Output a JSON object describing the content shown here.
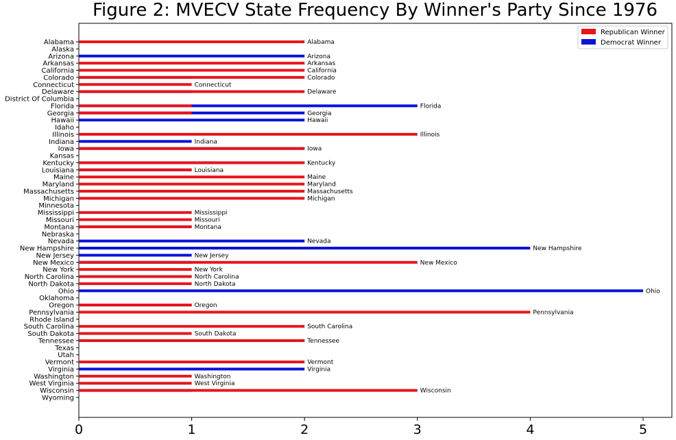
{
  "chart_data": {
    "type": "bar",
    "orientation": "horizontal",
    "title": "Figure 2: MVECV State Frequency By Winner's Party Since 1976",
    "xlabel": "",
    "ylabel": "",
    "xlim": [
      0,
      5.25
    ],
    "xticks": [
      0,
      1,
      2,
      3,
      4,
      5
    ],
    "legend": {
      "placement": "top-right",
      "entries": [
        "Republican Winner",
        "Democrat Winner"
      ]
    },
    "colors": {
      "republican": "#e8151a",
      "democrat": "#0a13d6"
    },
    "categories": [
      "Alabama",
      "Alaska",
      "Arizona",
      "Arkansas",
      "California",
      "Colorado",
      "Connecticut",
      "Delaware",
      "District Of Columbia",
      "Florida",
      "Georgia",
      "Hawaii",
      "Idaho",
      "Illinois",
      "Indiana",
      "Iowa",
      "Kansas",
      "Kentucky",
      "Louisiana",
      "Maine",
      "Maryland",
      "Massachusetts",
      "Michigan",
      "Minnesota",
      "Mississippi",
      "Missouri",
      "Montana",
      "Nebraska",
      "Nevada",
      "New Hampshire",
      "New Jersey",
      "New Mexico",
      "New York",
      "North Carolina",
      "North Dakota",
      "Ohio",
      "Oklahoma",
      "Oregon",
      "Pennsylvania",
      "Rhode Island",
      "South Carolina",
      "South Dakota",
      "Tennessee",
      "Texas",
      "Utah",
      "Vermont",
      "Virginia",
      "Washington",
      "West Virginia",
      "Wisconsin",
      "Wyoming"
    ],
    "series": [
      {
        "name": "Republican Winner",
        "values": [
          2,
          0,
          0,
          2,
          2,
          2,
          1,
          2,
          0,
          1,
          1,
          0,
          0,
          3,
          0,
          2,
          0,
          2,
          1,
          2,
          2,
          2,
          2,
          0,
          1,
          1,
          1,
          0,
          0,
          0,
          0,
          3,
          1,
          1,
          1,
          0,
          0,
          1,
          4,
          0,
          2,
          1,
          2,
          0,
          0,
          2,
          0,
          1,
          1,
          3,
          0
        ]
      },
      {
        "name": "Democrat Winner",
        "values": [
          0,
          0,
          2,
          0,
          0,
          1,
          0,
          1,
          0,
          3,
          2,
          2,
          0,
          0,
          1,
          2,
          0,
          2,
          1,
          0,
          0,
          0,
          0,
          0,
          0,
          1,
          1,
          0,
          2,
          4,
          1,
          1,
          0,
          1,
          0,
          5,
          0,
          1,
          0,
          0,
          0,
          0,
          2,
          0,
          0,
          0,
          2,
          0,
          0,
          1,
          0
        ]
      }
    ]
  }
}
